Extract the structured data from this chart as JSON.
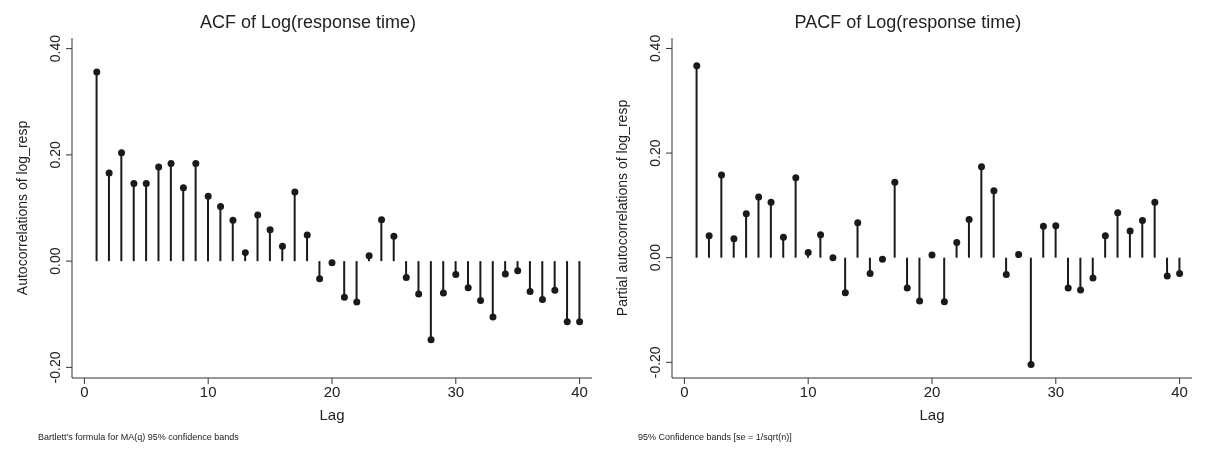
{
  "chart_data": [
    {
      "type": "lollipop",
      "title": "ACF of Log(response time)",
      "xlabel": "Lag",
      "ylabel": "Autocorrelations of log_resp",
      "annotations": [
        "Bartlett's formula for MA(q) 95% confidence bands"
      ],
      "color": "#1a1a1a",
      "marker": "circle",
      "grid": false,
      "xlim": [
        -1,
        41
      ],
      "ylim": [
        -0.22,
        0.42
      ],
      "xticks": [
        0,
        10,
        20,
        30,
        40
      ],
      "yticks": [
        {
          "value": -0.2,
          "label": "-0.20"
        },
        {
          "value": 0,
          "label": "0.00"
        },
        {
          "value": 0.2,
          "label": "0.20"
        },
        {
          "value": 0.4,
          "label": "0.40"
        }
      ],
      "x": [
        1,
        2,
        3,
        4,
        5,
        6,
        7,
        8,
        9,
        10,
        11,
        12,
        13,
        14,
        15,
        16,
        17,
        18,
        19,
        20,
        21,
        22,
        23,
        24,
        25,
        26,
        27,
        28,
        29,
        30,
        31,
        32,
        33,
        34,
        35,
        36,
        37,
        38,
        39,
        40
      ],
      "values": [
        0.356,
        0.166,
        0.204,
        0.146,
        0.146,
        0.177,
        0.184,
        0.138,
        0.184,
        0.122,
        0.103,
        0.077,
        0.016,
        0.087,
        0.059,
        0.028,
        0.13,
        0.049,
        -0.033,
        -0.003,
        -0.068,
        -0.077,
        0.01,
        0.078,
        0.047,
        -0.031,
        -0.062,
        -0.148,
        -0.06,
        -0.025,
        -0.05,
        -0.074,
        -0.105,
        -0.024,
        -0.018,
        -0.057,
        -0.072,
        -0.055,
        -0.114,
        -0.114
      ]
    },
    {
      "type": "lollipop",
      "title": "PACF of Log(response time)",
      "xlabel": "Lag",
      "ylabel": "Partial autocorrelations of log_resp",
      "annotations": [
        "95% Confidence bands [se = 1/sqrt(n)]"
      ],
      "color": "#1a1a1a",
      "marker": "circle",
      "grid": false,
      "xlim": [
        -1,
        41
      ],
      "ylim": [
        -0.23,
        0.42
      ],
      "xticks": [
        0,
        10,
        20,
        30,
        40
      ],
      "yticks": [
        {
          "value": -0.2,
          "label": "-0.20"
        },
        {
          "value": 0,
          "label": "0.00"
        },
        {
          "value": 0.2,
          "label": "0.20"
        },
        {
          "value": 0.4,
          "label": "0.40"
        }
      ],
      "x": [
        1,
        2,
        3,
        4,
        5,
        6,
        7,
        8,
        9,
        10,
        11,
        12,
        13,
        14,
        15,
        16,
        17,
        18,
        19,
        20,
        21,
        22,
        23,
        24,
        25,
        26,
        27,
        28,
        29,
        30,
        31,
        32,
        33,
        34,
        35,
        36,
        37,
        38,
        39,
        40
      ],
      "values": [
        0.367,
        0.042,
        0.158,
        0.036,
        0.084,
        0.116,
        0.106,
        0.039,
        0.153,
        0.01,
        0.044,
        0,
        -0.067,
        0.067,
        -0.03,
        -0.003,
        0.144,
        -0.058,
        -0.083,
        0.005,
        -0.084,
        0.029,
        0.073,
        0.174,
        0.128,
        -0.032,
        0.006,
        -0.204,
        0.06,
        0.061,
        -0.058,
        -0.062,
        -0.039,
        0.042,
        0.086,
        0.051,
        0.071,
        0.106,
        -0.035,
        -0.03
      ]
    }
  ]
}
